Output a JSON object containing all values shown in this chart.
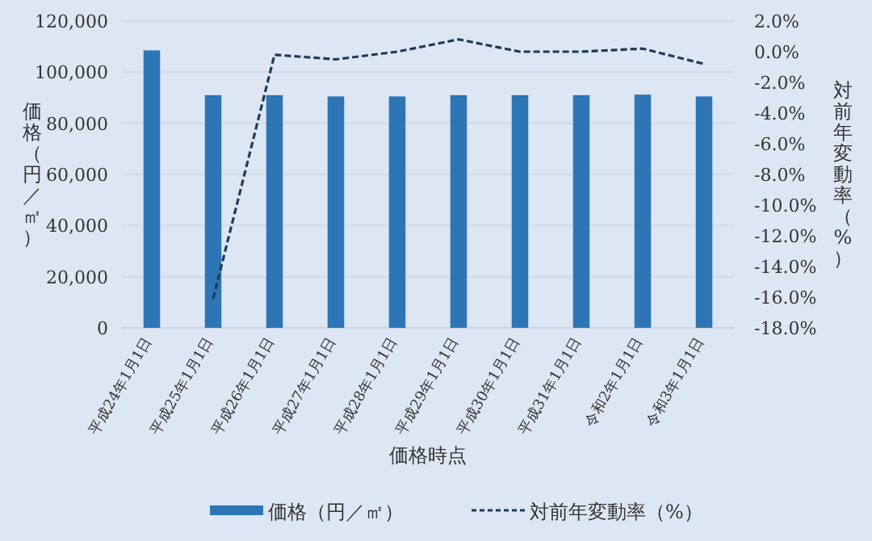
{
  "chart_data": {
    "type": "bar",
    "xlabel": "価格時点",
    "ylabel": "価格（円／㎡）",
    "y2label": "対前年変動率（%）",
    "categories": [
      "平成24年1月1日",
      "平成25年1月1日",
      "平成26年1月1日",
      "平成27年1月1日",
      "平成28年1月1日",
      "平成29年1月1日",
      "平成30年1月1日",
      "平成31年1月1日",
      "令和2年1月1日",
      "令和3年1月1日"
    ],
    "series": [
      {
        "name": "価格（円／㎡）",
        "color": "#2e75b6",
        "values": [
          108500,
          91000,
          91000,
          90500,
          90500,
          91000,
          91000,
          91000,
          91200,
          90500
        ]
      },
      {
        "name": "対前年変動率（%）",
        "type": "line",
        "axis": "y2",
        "color": "#1f3b5a",
        "line_style": "dashed",
        "values": [
          null,
          -16.1,
          -0.2,
          -0.5,
          0.0,
          0.8,
          0.0,
          0.0,
          0.2,
          -0.8
        ]
      }
    ],
    "ylim": [
      0,
      120000
    ],
    "yticks": [
      0,
      {
        "value": 20000,
        "label": "20,000"
      },
      {
        "value": 40000,
        "label": "40,000"
      },
      {
        "value": 60000,
        "label": "60,000"
      },
      {
        "value": 80000,
        "label": "80,000"
      },
      {
        "value": 100000,
        "label": "100,000"
      },
      {
        "value": 120000,
        "label": "120,000"
      }
    ],
    "y2lim": [
      -18,
      2
    ],
    "y2ticks": [
      {
        "value": 2,
        "label": "2.0%"
      },
      {
        "value": 0,
        "label": "0.0%"
      },
      {
        "value": -2,
        "label": "-2.0%"
      },
      {
        "value": -4,
        "label": "-4.0%"
      },
      {
        "value": -6,
        "label": "-6.0%"
      },
      {
        "value": -8,
        "label": "-8.0%"
      },
      {
        "value": -10,
        "label": "-10.0%"
      },
      {
        "value": -12,
        "label": "-12.0%"
      },
      {
        "value": -14,
        "label": "-14.0%"
      },
      {
        "value": -16,
        "label": "-16.0%"
      },
      {
        "value": -18,
        "label": "-18.0%"
      }
    ],
    "grid": "y",
    "legend": "bottom"
  }
}
